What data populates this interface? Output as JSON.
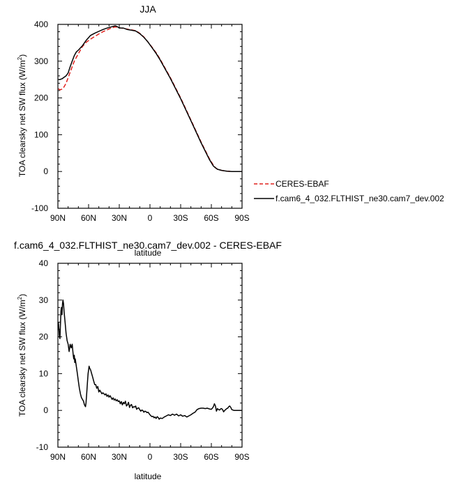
{
  "chart_data": [
    {
      "type": "line",
      "title": "JJA",
      "xlabel": "latitude",
      "ylabel": "TOA clearsky net SW flux (W/m²)",
      "ylabel_base": "TOA clearsky net SW flux (W/m",
      "ylabel_sup": "2",
      "ylabel_end": ")",
      "xlim": [
        90,
        -90
      ],
      "ylim": [
        -100,
        400
      ],
      "x_ticks": [
        {
          "v": 90,
          "label": "90N"
        },
        {
          "v": 60,
          "label": "60N"
        },
        {
          "v": 30,
          "label": "30N"
        },
        {
          "v": 0,
          "label": "0"
        },
        {
          "v": -30,
          "label": "30S"
        },
        {
          "v": -60,
          "label": "60S"
        },
        {
          "v": -90,
          "label": "90S"
        }
      ],
      "y_ticks": [
        {
          "v": 400,
          "label": "400"
        },
        {
          "v": 300,
          "label": "300"
        },
        {
          "v": 200,
          "label": "200"
        },
        {
          "v": 100,
          "label": "100"
        },
        {
          "v": 0,
          "label": "0"
        },
        {
          "v": -100,
          "label": "-100"
        }
      ],
      "legend": {
        "placement": "right of plot, bottom"
      },
      "series": [
        {
          "name": "CERES-EBAF",
          "color": "#e0201b",
          "dash": "dashed",
          "x": [
            89.5,
            88,
            86,
            84,
            82,
            80,
            78,
            76,
            74,
            72,
            70,
            66,
            62,
            58,
            54,
            50,
            46,
            42,
            38,
            34,
            30,
            26,
            22,
            18,
            14,
            10,
            6,
            2,
            -2,
            -6,
            -10,
            -20,
            -30,
            -40,
            -50,
            -58,
            -62,
            -64,
            -66,
            -70,
            -75,
            -80,
            -85,
            -89.5
          ],
          "y": [
            225,
            222,
            224,
            230,
            240,
            255,
            270,
            285,
            300,
            310,
            320,
            340,
            352,
            360,
            367,
            374,
            380,
            385,
            390,
            393,
            391,
            389,
            387,
            385,
            383,
            376,
            366,
            352,
            338,
            323,
            305,
            255,
            200,
            140,
            80,
            35,
            17,
            10,
            6,
            3,
            1,
            0,
            0,
            0
          ]
        },
        {
          "name": "f.cam6_4_032.FLTHIST_ne30.cam7_dev.002",
          "color": "#000000",
          "dash": "solid",
          "x": [
            89.5,
            88,
            86,
            84,
            82,
            80,
            78,
            76,
            74,
            72,
            70,
            66,
            62,
            58,
            54,
            50,
            46,
            42,
            38,
            34,
            32,
            30,
            26,
            22,
            18,
            14,
            10,
            6,
            2,
            -2,
            -6,
            -10,
            -20,
            -30,
            -40,
            -50,
            -58,
            -62,
            -64,
            -66,
            -70,
            -75,
            -80,
            -85,
            -89.5
          ],
          "y": [
            250,
            250,
            252,
            256,
            260,
            268,
            285,
            300,
            315,
            325,
            330,
            342,
            358,
            370,
            376,
            381,
            386,
            390,
            393,
            396,
            394,
            390,
            390,
            386,
            384,
            382,
            375,
            365,
            352,
            337,
            321,
            303,
            253,
            198,
            138,
            78,
            33,
            15,
            10,
            6,
            3,
            1,
            0,
            0,
            0
          ]
        }
      ]
    },
    {
      "type": "line",
      "title": "f.cam6_4_032.FLTHIST_ne30.cam7_dev.002 - CERES-EBAF",
      "xlabel": "latitude",
      "ylabel": "TOA clearsky net SW flux (W/m²)",
      "ylabel_base": "TOA clearsky net SW flux (W/m",
      "ylabel_sup": "2",
      "ylabel_end": ")",
      "xlim": [
        90,
        -90
      ],
      "ylim": [
        -10,
        40
      ],
      "x_ticks": [
        {
          "v": 90,
          "label": "90N"
        },
        {
          "v": 60,
          "label": "60N"
        },
        {
          "v": 30,
          "label": "30N"
        },
        {
          "v": 0,
          "label": "0"
        },
        {
          "v": -30,
          "label": "30S"
        },
        {
          "v": -60,
          "label": "60S"
        },
        {
          "v": -90,
          "label": "90S"
        }
      ],
      "y_ticks": [
        {
          "v": 40,
          "label": "40"
        },
        {
          "v": 30,
          "label": "30"
        },
        {
          "v": 20,
          "label": "20"
        },
        {
          "v": 10,
          "label": "10"
        },
        {
          "v": 0,
          "label": "0"
        },
        {
          "v": -10,
          "label": "-10"
        }
      ],
      "series": [
        {
          "color": "#000000",
          "dash": "solid",
          "x": [
            89.5,
            89,
            88.5,
            88,
            87,
            86.5,
            86,
            85.5,
            85,
            84.5,
            84,
            83,
            82,
            81,
            80,
            79,
            78,
            77,
            76,
            75,
            74.5,
            74,
            73.5,
            73,
            72,
            71,
            70,
            69,
            68,
            67,
            66,
            65,
            64,
            63,
            62.5,
            62,
            61.5,
            61,
            60.5,
            60,
            59.5,
            59,
            58,
            57,
            56,
            55,
            54,
            53,
            52,
            51,
            50,
            49,
            48,
            47,
            46,
            45,
            44,
            43,
            42,
            41,
            40,
            39,
            38,
            37,
            36,
            35,
            34,
            33,
            32,
            31,
            30,
            29,
            28,
            27,
            26,
            25,
            24,
            23,
            22,
            21,
            20,
            19,
            18,
            17,
            16,
            15,
            14,
            13,
            12,
            11,
            10,
            9,
            8,
            7,
            6,
            5,
            4,
            3,
            2,
            1,
            0,
            -1,
            -2,
            -3,
            -4,
            -5,
            -6,
            -7,
            -8,
            -9,
            -10,
            -12,
            -14,
            -16,
            -18,
            -20,
            -22,
            -24,
            -26,
            -28,
            -30,
            -32,
            -34,
            -36,
            -38,
            -40,
            -42,
            -44,
            -46,
            -48,
            -50,
            -52,
            -54,
            -56,
            -58,
            -60,
            -61,
            -62,
            -63,
            -64,
            -65,
            -66,
            -67,
            -68,
            -69,
            -70,
            -71,
            -72,
            -73,
            -74,
            -75,
            -76,
            -77,
            -78,
            -79,
            -80,
            -82,
            -84,
            -86,
            -88,
            -89.5
          ],
          "y": [
            24,
            22,
            20,
            19.5,
            27,
            28,
            26,
            29,
            30,
            29,
            27,
            24,
            21,
            19,
            18,
            16,
            18,
            17,
            18,
            15,
            14,
            15,
            13,
            14,
            12,
            10,
            8,
            6,
            4.5,
            3.5,
            3,
            2.5,
            1.5,
            1,
            2,
            4,
            6,
            8,
            10,
            11,
            12,
            11.5,
            11,
            10,
            9,
            8,
            7,
            7,
            6,
            6.5,
            5,
            5.5,
            5,
            4.5,
            4.8,
            4.5,
            4.2,
            4.5,
            3.8,
            4.2,
            3.6,
            4,
            3.5,
            3,
            3.4,
            2.8,
            3.1,
            2.6,
            2.9,
            2.4,
            2.6,
            1.8,
            2.4,
            1.5,
            2.2,
            1.8,
            2.5,
            1.2,
            1.5,
            2.2,
            0.8,
            1.4,
            1.6,
            0.7,
            1.0,
            0.9,
            1.2,
            0.3,
            0.6,
            0.7,
            0.2,
            -0.2,
            0.1,
            0,
            -0.5,
            -0.2,
            -0.3,
            -0.6,
            -0.5,
            -0.8,
            -1.2,
            -1.5,
            -1.7,
            -1.6,
            -2.0,
            -1.8,
            -2.2,
            -1.7,
            -1.9,
            -2.4,
            -2.1,
            -2.2,
            -1.8,
            -1.5,
            -1.2,
            -1.4,
            -1.0,
            -1.3,
            -1.0,
            -1.5,
            -1.2,
            -1.6,
            -1.4,
            -1.8,
            -1.5,
            -1.2,
            -0.8,
            -0.5,
            0.2,
            0.5,
            0.6,
            0.6,
            0.5,
            0.6,
            0.4,
            0.3,
            0.6,
            1.0,
            1.8,
            1.2,
            -0.2,
            0.5,
            0.2,
            0.1,
            0.4,
            0.5,
            0.2,
            -0.4,
            0.0,
            0.2,
            0.5,
            0.6,
            1.0,
            1.2,
            0.8,
            0.2,
            0.0,
            0.0,
            0.0,
            0.0,
            0.0
          ]
        }
      ]
    }
  ]
}
